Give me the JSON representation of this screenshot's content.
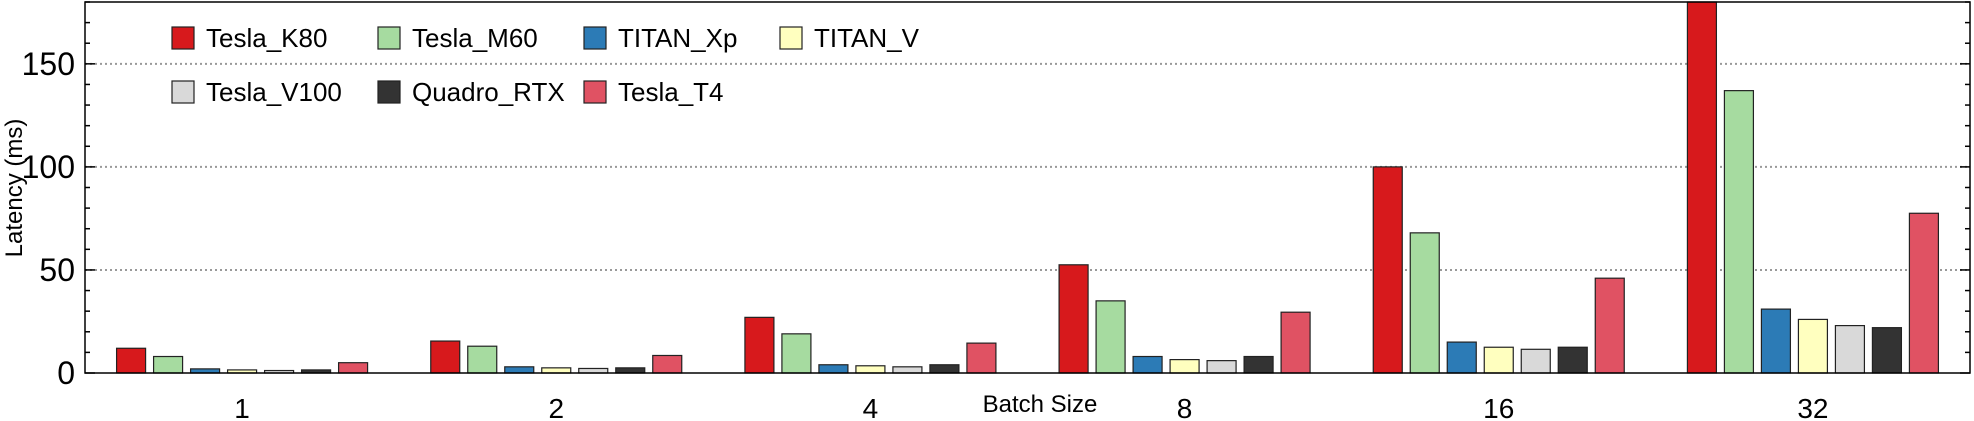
{
  "chart_data": {
    "type": "bar",
    "xlabel": "Batch Size",
    "ylabel": "Latency (ms)",
    "ylim": [
      0,
      180
    ],
    "yticks": [
      0,
      50,
      100,
      150
    ],
    "grid": "horizontal dotted at major ticks",
    "legend_position": "top-left",
    "categories": [
      "1",
      "2",
      "4",
      "8",
      "16",
      "32"
    ],
    "series": [
      {
        "name": "Tesla_K80",
        "color": "#d7191c",
        "values": [
          12,
          15.5,
          27,
          52.5,
          100,
          180
        ]
      },
      {
        "name": "Tesla_M60",
        "color": "#a6dba0",
        "values": [
          8,
          13,
          19,
          35,
          68,
          137
        ]
      },
      {
        "name": "TITAN_Xp",
        "color": "#2c7bb6",
        "values": [
          2,
          3,
          4,
          8,
          15,
          31
        ]
      },
      {
        "name": "TITAN_V",
        "color": "#ffffbf",
        "values": [
          1.5,
          2.5,
          3.5,
          6.5,
          12.5,
          26
        ]
      },
      {
        "name": "Tesla_V100",
        "color": "#d9d9d9",
        "values": [
          1.2,
          2.2,
          3,
          6,
          11.5,
          23
        ]
      },
      {
        "name": "Quadro_RTX",
        "color": "#333333",
        "values": [
          1.5,
          2.5,
          4,
          8,
          12.5,
          22
        ]
      },
      {
        "name": "Tesla_T4",
        "color": "#e05263",
        "values": [
          5,
          8.5,
          14.5,
          29.5,
          46,
          77.5
        ]
      }
    ]
  }
}
